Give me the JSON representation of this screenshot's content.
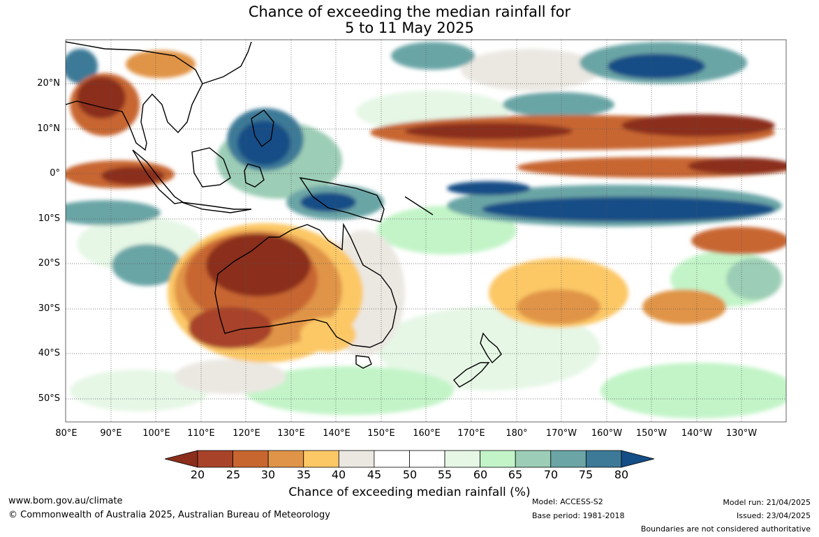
{
  "title_line1": "Chance of exceeding the median rainfall for",
  "title_line2": "5 to 11 May 2025",
  "map": {
    "lat_labels": [
      "20°N",
      "10°N",
      "0°",
      "10°S",
      "20°S",
      "30°S",
      "40°S",
      "50°S"
    ],
    "lon_labels": [
      "80°E",
      "90°E",
      "100°E",
      "110°E",
      "120°E",
      "130°E",
      "140°E",
      "150°E",
      "160°E",
      "170°E",
      "180°",
      "170°W",
      "160°W",
      "150°W",
      "140°W",
      "130°W"
    ],
    "extent": {
      "lon_min": 80,
      "lon_max": 240,
      "lat_min": -55,
      "lat_max": 30
    },
    "gridlines": true
  },
  "colorbar": {
    "ticks": [
      "20",
      "25",
      "30",
      "35",
      "40",
      "45",
      "50",
      "55",
      "60",
      "65",
      "70",
      "75",
      "80"
    ],
    "colors": [
      "#8b2e1c",
      "#a8432a",
      "#c86630",
      "#e09447",
      "#fcc866",
      "#ebe8e2",
      "#ffffff",
      "#ffffff",
      "#e6f7e6",
      "#c3f4c8",
      "#9ccdb6",
      "#6ba5a6",
      "#3d7a97",
      "#154d86"
    ],
    "label": "Chance of exceeding median rainfall (%)"
  },
  "footer": {
    "url": "www.bom.gov.au/climate",
    "copyright": "© Commonwealth of Australia 2025, Australian Bureau of Meteorology",
    "model": "Model: ACCESS-S2",
    "base_period": "Base period: 1981-2018",
    "model_run": "Model run: 21/04/2025",
    "issued": "Issued: 23/04/2025",
    "disclaimer": "Boundaries are not considered authoritative"
  }
}
